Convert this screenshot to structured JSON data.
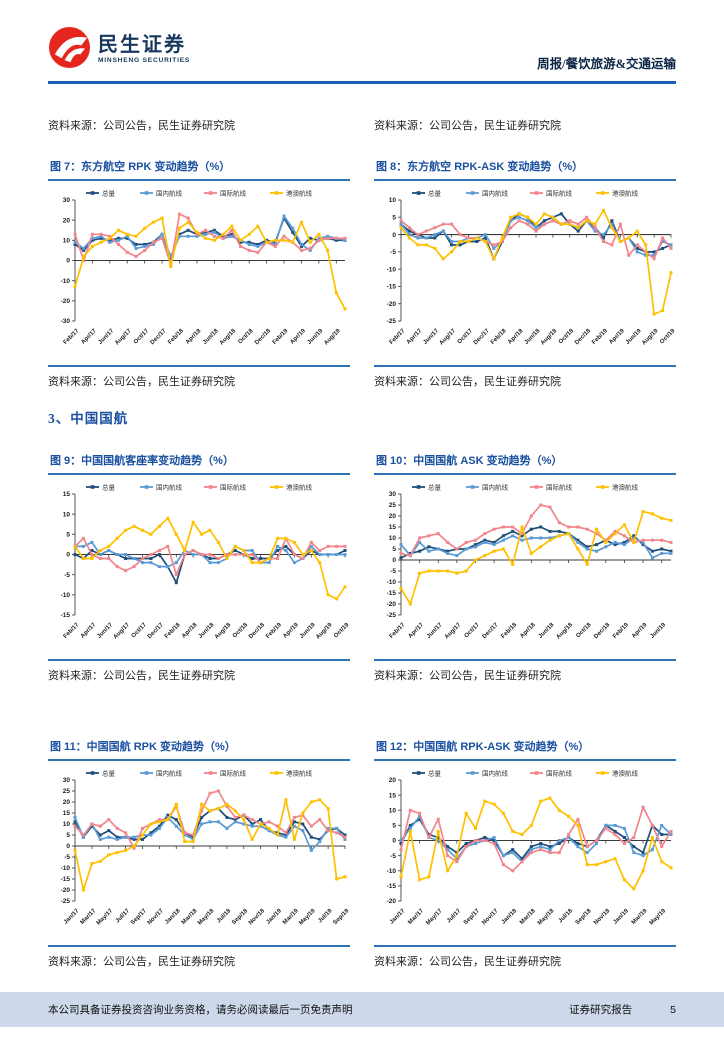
{
  "header": {
    "brand_cn": "民生证券",
    "brand_en": "MINSHENG SECURITIES",
    "report_type": "周报/餐饮旅游&交通运输"
  },
  "source_note": "资料来源：公司公告，民生证券研究院",
  "section": {
    "title": "3、中国国航"
  },
  "footer": {
    "disclaimer": "本公司具备证券投资咨询业务资格，请务必阅读最后一页免责声明",
    "report_label": "证券研究报告",
    "page_number": "5"
  },
  "series_colors": [
    "#1F4E79",
    "#5B9BD5",
    "#F2848B",
    "#FFC000"
  ],
  "chart_data": [
    {
      "id": "fig7",
      "type": "line",
      "title": "图 7：东方航空 RPK 变动趋势（%）",
      "x_tick_labels": [
        "Feb/17",
        "Apr/17",
        "Jun/17",
        "Aug/17",
        "Oct/17",
        "Dec/17",
        "Feb/18",
        "Apr/18",
        "Jun/18",
        "Aug/18",
        "Oct/18",
        "Dec/18",
        "Feb/19",
        "Apr/19",
        "Jun/19",
        "Aug/19"
      ],
      "ylim": [
        -30,
        30
      ],
      "ystep": 10,
      "grid": false,
      "legend_position": "top",
      "series": [
        {
          "name": "总量",
          "values": [
            8,
            5,
            10,
            11,
            10,
            11,
            11,
            8,
            8,
            9,
            13,
            1,
            13,
            15,
            13,
            14,
            15,
            12,
            13,
            9,
            9,
            8,
            10,
            9,
            21,
            14,
            7,
            11,
            10,
            11,
            10,
            10
          ]
        },
        {
          "name": "国内航线",
          "values": [
            9,
            6,
            11,
            12,
            9,
            10,
            12,
            6,
            7,
            8,
            13,
            2,
            12,
            12,
            12,
            13,
            14,
            11,
            12,
            10,
            8,
            7,
            9,
            8,
            22,
            16,
            8,
            5,
            11,
            12,
            11,
            10
          ]
        },
        {
          "name": "国际航线",
          "values": [
            13,
            0,
            13,
            13,
            12,
            8,
            4,
            2,
            5,
            9,
            11,
            -2,
            23,
            21,
            13,
            15,
            12,
            11,
            15,
            7,
            5,
            4,
            9,
            7,
            12,
            9,
            5,
            6,
            10,
            11,
            11,
            11
          ]
        },
        {
          "name": "港澳航线",
          "values": [
            -13,
            2,
            7,
            9,
            11,
            15,
            13,
            12,
            16,
            19,
            21,
            -3,
            16,
            19,
            14,
            11,
            10,
            13,
            17,
            10,
            13,
            17,
            9,
            10,
            10,
            9,
            19,
            9,
            13,
            5,
            -16,
            -24
          ]
        }
      ]
    },
    {
      "id": "fig8",
      "type": "line",
      "title": "图 8：东方航空 RPK-ASK 变动趋势（%）",
      "x_tick_labels": [
        "Feb/17",
        "Apr/17",
        "Jun/17",
        "Aug/17",
        "Oct/17",
        "Dec/17",
        "Feb/18",
        "Apr/18",
        "Jun/18",
        "Aug/18",
        "Oct/18",
        "Dec/18",
        "Feb/19",
        "Apr/19",
        "Jun/19",
        "Aug/19",
        "Oct/19"
      ],
      "ylim": [
        -25,
        10
      ],
      "ystep": 5,
      "grid": false,
      "legend_position": "top",
      "series": [
        {
          "name": "总量",
          "values": [
            3,
            1,
            0,
            -1,
            -1,
            1,
            -3,
            -3,
            -2,
            -2,
            -1,
            -7,
            -2,
            4,
            6,
            5,
            2,
            4,
            5,
            6,
            3,
            1,
            4,
            2,
            -1,
            4,
            -2,
            -1,
            -4,
            -5,
            -5,
            -4,
            -3
          ]
        },
        {
          "name": "国内航线",
          "values": [
            3,
            0,
            -1,
            -1,
            0,
            1,
            -2,
            -2,
            -1,
            -1,
            0,
            -4,
            -2,
            4,
            5,
            4,
            2,
            3,
            4,
            3,
            3,
            2,
            4,
            1,
            0,
            3,
            -2,
            -1,
            -5,
            -6,
            -6,
            -2,
            -3
          ]
        },
        {
          "name": "国际航线",
          "values": [
            4,
            2,
            0,
            1,
            2,
            3,
            3,
            0,
            -1,
            -1,
            -2,
            -3,
            -2,
            2,
            4,
            3,
            1,
            3,
            4,
            3,
            4,
            3,
            5,
            2,
            -2,
            -3,
            3,
            -6,
            -3,
            -5,
            -7,
            -1,
            -4
          ]
        },
        {
          "name": "港澳航线",
          "values": [
            2,
            -1,
            -3,
            -3,
            -4,
            -7,
            -5,
            -2,
            -2,
            -1,
            -2,
            -7,
            -1,
            5,
            6,
            5,
            3,
            6,
            5,
            3,
            3,
            2,
            4,
            3,
            7,
            2,
            -2,
            -1,
            1,
            -3,
            -23,
            -22,
            -11
          ]
        }
      ]
    },
    {
      "id": "fig9",
      "type": "line",
      "title": "图 9：中国国航客座率变动趋势（%）",
      "x_tick_labels": [
        "Feb/17",
        "Apr/17",
        "Jun/17",
        "Aug/17",
        "Oct/17",
        "Dec/17",
        "Feb/18",
        "Apr/18",
        "Jun/18",
        "Aug/18",
        "Oct/18",
        "Dec/18",
        "Feb/19",
        "Apr/19",
        "Jun/19",
        "Aug/19",
        "Oct/19"
      ],
      "ylim": [
        -15,
        15
      ],
      "ystep": 5,
      "grid": false,
      "legend_position": "top",
      "series": [
        {
          "name": "总量",
          "values": [
            0,
            -1,
            1,
            0,
            1,
            0,
            -1,
            -1,
            -1,
            -1,
            0,
            -3,
            -7,
            0,
            1,
            0,
            -1,
            -1,
            0,
            1,
            0,
            -1,
            -1,
            -1,
            1,
            2,
            0,
            -1,
            1,
            0,
            0,
            0,
            1
          ]
        },
        {
          "name": "国内航线",
          "values": [
            2,
            2,
            3,
            0,
            1,
            0,
            0,
            -1,
            -2,
            -2,
            -3,
            -3,
            -2,
            1,
            0,
            0,
            -2,
            -2,
            -1,
            2,
            1,
            1,
            -2,
            -2,
            2,
            1,
            -2,
            -1,
            2,
            0,
            0,
            0,
            0
          ]
        },
        {
          "name": "国际航线",
          "values": [
            2,
            4,
            0,
            -1,
            -1,
            -3,
            -4,
            -3,
            -1,
            0,
            1,
            2,
            -5,
            0,
            1,
            0,
            0,
            -1,
            0,
            0,
            0,
            0,
            -2,
            -1,
            -1,
            4,
            0,
            -1,
            3,
            1,
            2,
            2,
            2
          ]
        },
        {
          "name": "港澳航线",
          "values": [
            2,
            -1,
            -1,
            1,
            2,
            4,
            6,
            7,
            6,
            5,
            7,
            9,
            5,
            1,
            8,
            5,
            6,
            3,
            -1,
            2,
            1,
            -2,
            -2,
            -1,
            4,
            4,
            3,
            0,
            1,
            -2,
            -10,
            -11,
            -8
          ]
        }
      ]
    },
    {
      "id": "fig10",
      "type": "line",
      "title": "图 10：中国国航 ASK 变动趋势（%）",
      "x_tick_labels": [
        "Feb/17",
        "Apr/17",
        "Jun/17",
        "Aug/17",
        "Oct/17",
        "Dec/17",
        "Feb/18",
        "Apr/18",
        "Jun/18",
        "Aug/18",
        "Oct/18",
        "Dec/18",
        "Feb/19",
        "Apr/19",
        "Jun/19"
      ],
      "ylim": [
        -25,
        30
      ],
      "ystep": 5,
      "grid": false,
      "legend_position": "top",
      "series": [
        {
          "name": "总量",
          "values": [
            1,
            3,
            4,
            6,
            5,
            4,
            5,
            5,
            7,
            9,
            8,
            11,
            13,
            11,
            14,
            15,
            13,
            13,
            12,
            9,
            6,
            7,
            9,
            7,
            8,
            11,
            7,
            4,
            5,
            4
          ]
        },
        {
          "name": "国内航线",
          "values": [
            7,
            2,
            8,
            4,
            5,
            3,
            2,
            5,
            6,
            8,
            7,
            9,
            11,
            9,
            10,
            10,
            10,
            11,
            12,
            8,
            5,
            4,
            6,
            8,
            7,
            10,
            8,
            1,
            3,
            3
          ]
        },
        {
          "name": "国际航线",
          "values": [
            3,
            2,
            10,
            11,
            12,
            8,
            5,
            8,
            9,
            12,
            14,
            15,
            15,
            12,
            20,
            25,
            24,
            17,
            15,
            15,
            14,
            12,
            9,
            13,
            11,
            8,
            9,
            9,
            9,
            8
          ]
        },
        {
          "name": "港澳航线",
          "values": [
            -13,
            -20,
            -6,
            -5,
            -5,
            -5,
            -6,
            -5,
            0,
            2,
            4,
            5,
            -2,
            15,
            3,
            6,
            9,
            11,
            12,
            5,
            -2,
            14,
            8,
            12,
            16,
            8,
            22,
            21,
            19,
            18
          ]
        }
      ]
    },
    {
      "id": "fig11",
      "type": "line",
      "title": "图 11：中国国航 RPK 变动趋势（%）",
      "x_tick_labels": [
        "Jan/17",
        "Mar/17",
        "May/17",
        "Jul/17",
        "Sep/17",
        "Nov/17",
        "Jan/18",
        "Mar/18",
        "May/18",
        "Jul/18",
        "Sep/18",
        "Nov/18",
        "Jan/19",
        "Mar/19",
        "May/19",
        "Jul/19",
        "Sep/19"
      ],
      "ylim": [
        -25,
        30
      ],
      "ystep": 5,
      "grid": false,
      "legend_position": "top",
      "series": [
        {
          "name": "总量",
          "values": [
            11,
            4,
            9,
            5,
            7,
            4,
            4,
            3,
            3,
            6,
            9,
            14,
            12,
            6,
            4,
            13,
            16,
            17,
            13,
            12,
            14,
            10,
            12,
            7,
            6,
            5,
            11,
            10,
            4,
            3,
            7,
            8,
            5
          ]
        },
        {
          "name": "国内航线",
          "values": [
            13,
            4,
            10,
            3,
            4,
            3,
            4,
            4,
            5,
            5,
            8,
            13,
            9,
            5,
            3,
            10,
            11,
            11,
            8,
            11,
            10,
            9,
            9,
            7,
            5,
            4,
            9,
            7,
            -2,
            2,
            8,
            8,
            3
          ]
        },
        {
          "name": "国际航线",
          "values": [
            9,
            5,
            10,
            9,
            12,
            8,
            6,
            -1,
            8,
            10,
            12,
            12,
            18,
            6,
            5,
            16,
            24,
            25,
            18,
            13,
            14,
            12,
            10,
            11,
            9,
            6,
            13,
            14,
            9,
            12,
            7,
            6,
            4
          ]
        },
        {
          "name": "港澳航线",
          "values": [
            -2,
            -20,
            -8,
            -7,
            -4,
            -3,
            -2,
            0,
            5,
            10,
            11,
            12,
            19,
            2,
            2,
            19,
            16,
            17,
            19,
            16,
            12,
            3,
            10,
            8,
            5,
            21,
            3,
            15,
            20,
            21,
            17,
            -15,
            -14
          ]
        }
      ]
    },
    {
      "id": "fig12",
      "type": "line",
      "title": "图 12：中国国航 RPK-ASK 变动趋势（%）",
      "x_tick_labels": [
        "Jan/17",
        "Mar/17",
        "May/17",
        "Jul/17",
        "Sep/17",
        "Nov/17",
        "Jan/18",
        "Mar/18",
        "May/18",
        "Jul/18",
        "Sep/18",
        "Nov/18",
        "Jan/19",
        "Mar/19",
        "May/19"
      ],
      "ylim": [
        -20,
        20
      ],
      "ystep": 5,
      "grid": false,
      "legend_position": "top",
      "series": [
        {
          "name": "总量",
          "values": [
            -1,
            5,
            7,
            2,
            1,
            -2,
            -4,
            -1,
            0,
            1,
            0,
            -5,
            -3,
            -6,
            -2,
            -1,
            -2,
            -1,
            1,
            -1,
            -2,
            0,
            5,
            3,
            1,
            -2,
            -4,
            5,
            2,
            2
          ]
        },
        {
          "name": "国内航线",
          "values": [
            0,
            4,
            8,
            1,
            0,
            -3,
            -6,
            -2,
            -1,
            0,
            1,
            -5,
            -4,
            -7,
            -3,
            -2,
            -3,
            0,
            1,
            -2,
            -4,
            -1,
            5,
            5,
            4,
            -4,
            -5,
            -3,
            5,
            2
          ]
        },
        {
          "name": "国际航线",
          "values": [
            -3,
            10,
            9,
            1,
            7,
            -5,
            -7,
            -2,
            0,
            0,
            -1,
            -8,
            -10,
            -7,
            -4,
            -3,
            -4,
            -4,
            2,
            7,
            -2,
            0,
            4,
            2,
            -1,
            1,
            11,
            5,
            -2,
            3
          ]
        },
        {
          "name": "港澳航线",
          "values": [
            -12,
            3,
            -13,
            -12,
            3,
            -10,
            -5,
            9,
            4,
            13,
            12,
            9,
            3,
            2,
            5,
            13,
            14,
            10,
            8,
            5,
            -8,
            -8,
            -7,
            -6,
            -13,
            -16,
            -10,
            1,
            -7,
            -9
          ]
        }
      ]
    }
  ]
}
